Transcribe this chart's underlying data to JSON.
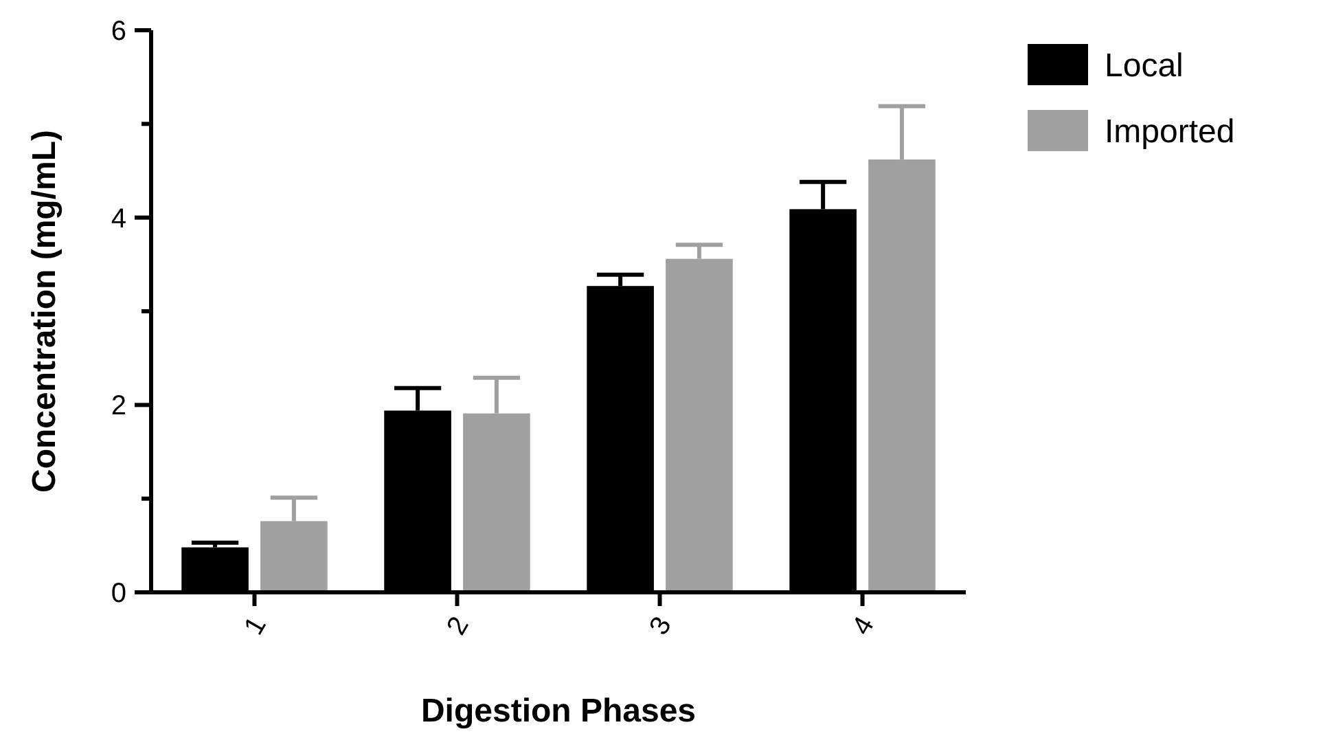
{
  "chart_data": {
    "type": "bar",
    "xlabel": "Digestion Phases",
    "ylabel": "Concentration (mg/mL)",
    "categories": [
      "1",
      "2",
      "3",
      "4"
    ],
    "series": [
      {
        "name": "Local",
        "color": "#000000",
        "values": [
          0.48,
          1.94,
          3.27,
          4.09
        ],
        "errors": [
          [
            0.48,
            0.53
          ],
          [
            1.94,
            2.18
          ],
          [
            3.27,
            3.39
          ],
          [
            4.09,
            4.38
          ]
        ]
      },
      {
        "name": "Imported",
        "color": "#a0a0a0",
        "values": [
          0.76,
          1.91,
          3.56,
          4.62
        ],
        "errors": [
          [
            0.76,
            1.01
          ],
          [
            1.91,
            2.29
          ],
          [
            3.56,
            3.71
          ],
          [
            4.62,
            5.19
          ]
        ]
      }
    ],
    "ylim": [
      0,
      6
    ],
    "yticks": [
      0,
      2,
      4,
      6
    ],
    "grid": false,
    "legend": "top right"
  }
}
